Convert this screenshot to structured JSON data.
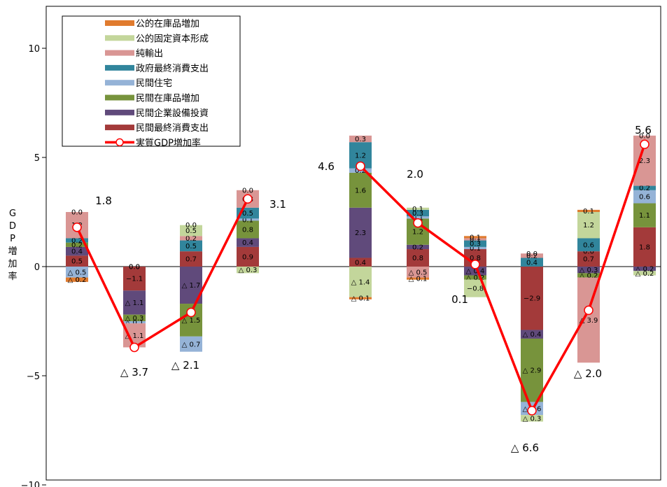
{
  "chart_data": {
    "type": "bar",
    "subtype": "stacked-bar-with-line",
    "title": "",
    "ylabel": "GDP増加率",
    "ylim": [
      -10,
      12
    ],
    "yticks": [
      {
        "value": 10,
        "label": "10"
      },
      {
        "value": 5,
        "label": "5"
      },
      {
        "value": 0,
        "label": "0"
      },
      {
        "value": -5,
        "label": "−5"
      },
      {
        "value": -10,
        "label": "−10"
      }
    ],
    "grid": false,
    "legend_position": "top-left",
    "legend": [
      {
        "name": "公的在庫品増加",
        "color": "#e07b2e"
      },
      {
        "name": "公的固定資本形成",
        "color": "#c3d69b"
      },
      {
        "name": "純輸出",
        "color": "#d99694"
      },
      {
        "name": "政府最終消費支出",
        "color": "#31859c"
      },
      {
        "name": "民間住宅",
        "color": "#95b3d7"
      },
      {
        "name": "民間在庫品増加",
        "color": "#77933c"
      },
      {
        "name": "民間企業設備投資",
        "color": "#604a7b"
      },
      {
        "name": "民間最終消費支出",
        "color": "#a33a3a"
      },
      {
        "name": "実質GDP増加率",
        "color": "#ff0000",
        "kind": "line"
      }
    ],
    "series_order": [
      "民間最終消費支出",
      "民間企業設備投資",
      "民間在庫品増加",
      "民間住宅",
      "政府最終消費支出",
      "純輸出",
      "公的固定資本形成",
      "公的在庫品増加"
    ],
    "groups": [
      {
        "bars": [
          {
            "gdp": 1.8,
            "gdp_label": "1.8",
            "segments": [
              {
                "series": "民間最終消費支出",
                "value": 0.5,
                "label": "0.5"
              },
              {
                "series": "民間企業設備投資",
                "value": 0.4,
                "label": "0.4"
              },
              {
                "series": "民間在庫品増加",
                "value": 0.2,
                "label": "0.2"
              },
              {
                "series": "政府最終消費支出",
                "value": 0.2,
                "label": "0.2"
              },
              {
                "series": "純輸出",
                "value": 1.2,
                "label": "1.2"
              },
              {
                "series": "公的固定資本形成",
                "value": 0.0,
                "label": "0.0"
              },
              {
                "series": "民間住宅",
                "value": -0.5,
                "label": "△ 0.5"
              },
              {
                "series": "公的在庫品増加",
                "value": -0.2,
                "label": "△ 0.2"
              }
            ]
          },
          {
            "gdp": -3.7,
            "gdp_label": "△ 3.7",
            "segments": [
              {
                "series": "公的在庫品増加",
                "value": 0.0,
                "label": "0.0"
              },
              {
                "series": "公的固定資本形成",
                "value": 0.0,
                "label": "0.0"
              },
              {
                "series": "民間最終消費支出",
                "value": -1.1,
                "label": "−1.1"
              },
              {
                "series": "民間企業設備投資",
                "value": -1.1,
                "label": "△ 1.1"
              },
              {
                "series": "民間住宅",
                "value": -0.1,
                "label": "△ 0.1"
              },
              {
                "series": "純輸出",
                "value": -1.1,
                "label": "△ 1.1"
              },
              {
                "series": "民間在庫品増加",
                "value": -0.3,
                "label": "△ 0.3"
              }
            ]
          },
          {
            "gdp": -2.1,
            "gdp_label": "△ 2.1",
            "segments": [
              {
                "series": "民間最終消費支出",
                "value": 0.7,
                "label": "0.7"
              },
              {
                "series": "政府最終消費支出",
                "value": 0.5,
                "label": "0.5"
              },
              {
                "series": "純輸出",
                "value": 0.2,
                "label": "0.2"
              },
              {
                "series": "公的固定資本形成",
                "value": 0.5,
                "label": "0.5"
              },
              {
                "series": "公的在庫品増加",
                "value": 0.0,
                "label": "0.0"
              },
              {
                "series": "民間企業設備投資",
                "value": -1.7,
                "label": "△ 1.7"
              },
              {
                "series": "民間在庫品増加",
                "value": -1.5,
                "label": "△ 1.5"
              },
              {
                "series": "民間住宅",
                "value": -0.7,
                "label": "△ 0.7"
              }
            ]
          },
          {
            "gdp": 3.1,
            "gdp_label": "3.1",
            "segments": [
              {
                "series": "民間最終消費支出",
                "value": 0.9,
                "label": "0.9"
              },
              {
                "series": "民間企業設備投資",
                "value": 0.4,
                "label": "0.4"
              },
              {
                "series": "民間在庫品増加",
                "value": 0.8,
                "label": "0.8"
              },
              {
                "series": "民間住宅",
                "value": 0.1,
                "label": "0.1"
              },
              {
                "series": "政府最終消費支出",
                "value": 0.5,
                "label": "0.5"
              },
              {
                "series": "純輸出",
                "value": 0.8,
                "label": "0.8"
              },
              {
                "series": "公的在庫品増加",
                "value": 0.0,
                "label": "0.0"
              },
              {
                "series": "公的固定資本形成",
                "value": -0.3,
                "label": "△ 0.3"
              }
            ]
          }
        ]
      },
      {
        "bars": [
          {
            "gdp": 4.6,
            "gdp_label": "4.6",
            "segments": [
              {
                "series": "民間最終消費支出",
                "value": 0.4,
                "label": "0.4"
              },
              {
                "series": "民間企業設備投資",
                "value": 2.3,
                "label": "2.3"
              },
              {
                "series": "民間在庫品増加",
                "value": 1.6,
                "label": "1.6"
              },
              {
                "series": "民間住宅",
                "value": 0.2,
                "label": "0.2"
              },
              {
                "series": "政府最終消費支出",
                "value": 1.2,
                "label": "1.2"
              },
              {
                "series": "純輸出",
                "value": 0.3,
                "label": "0.3"
              },
              {
                "series": "公的固定資本形成",
                "value": -1.4,
                "label": "△ 1.4"
              },
              {
                "series": "公的在庫品増加",
                "value": -0.1,
                "label": "△ 0.1"
              }
            ]
          },
          {
            "gdp": 2.0,
            "gdp_label": "2.0",
            "segments": [
              {
                "series": "民間最終消費支出",
                "value": 0.8,
                "label": "0.8"
              },
              {
                "series": "民間企業設備投資",
                "value": 0.2,
                "label": "0.2"
              },
              {
                "series": "民間在庫品増加",
                "value": 1.2,
                "label": "1.2"
              },
              {
                "series": "民間住宅",
                "value": 0.1,
                "label": "0.1"
              },
              {
                "series": "政府最終消費支出",
                "value": 0.3,
                "label": "0.3"
              },
              {
                "series": "公的固定資本形成",
                "value": 0.1,
                "label": "0.1"
              },
              {
                "series": "純輸出",
                "value": -0.5,
                "label": "△ 0.5"
              },
              {
                "series": "公的在庫品増加",
                "value": -0.1,
                "label": "△ 0.1"
              }
            ]
          },
          {
            "gdp": 0.1,
            "gdp_label": "0.1",
            "segments": [
              {
                "series": "民間最終消費支出",
                "value": 0.8,
                "label": "0.8"
              },
              {
                "series": "民間住宅",
                "value": 0.1,
                "label": "0.1"
              },
              {
                "series": "政府最終消費支出",
                "value": 0.3,
                "label": "0.3"
              },
              {
                "series": "純輸出",
                "value": 0.1,
                "label": "0.1"
              },
              {
                "series": "公的在庫品増加",
                "value": 0.1,
                "label": "0.1"
              },
              {
                "series": "民間企業設備投資",
                "value": -0.4,
                "label": "△ 0.4"
              },
              {
                "series": "民間在庫品増加",
                "value": -0.2,
                "label": "△ 0.2"
              },
              {
                "series": "公的固定資本形成",
                "value": -0.8,
                "label": "−0.8"
              }
            ]
          },
          {
            "gdp": -6.6,
            "gdp_label": "△ 6.6",
            "segments": [
              {
                "series": "政府最終消費支出",
                "value": 0.4,
                "label": "0.4"
              },
              {
                "series": "公的在庫品増加",
                "value": 0.0,
                "label": "0.0"
              },
              {
                "series": "純輸出",
                "value": 0.2,
                "label": "0.2"
              },
              {
                "series": "民間最終消費支出",
                "value": -2.9,
                "label": "−2.9"
              },
              {
                "series": "民間企業設備投資",
                "value": -0.4,
                "label": "△ 0.4"
              },
              {
                "series": "民間在庫品増加",
                "value": -2.9,
                "label": "△ 2.9"
              },
              {
                "series": "民間住宅",
                "value": -0.6,
                "label": "△ 0.6"
              },
              {
                "series": "公的固定資本形成",
                "value": -0.3,
                "label": "△ 0.3"
              }
            ]
          },
          {
            "gdp": -2.0,
            "gdp_label": "△ 2.0",
            "segments": [
              {
                "series": "民間最終消費支出",
                "value": 0.7,
                "label": "0.7"
              },
              {
                "series": "政府最終消費支出",
                "value": 0.6,
                "label": "0.6"
              },
              {
                "series": "公的固定資本形成",
                "value": 1.2,
                "label": "1.2"
              },
              {
                "series": "公的在庫品増加",
                "value": 0.1,
                "label": "0.1"
              },
              {
                "series": "民間住宅",
                "value": 0.0,
                "label": "0.0"
              },
              {
                "series": "民間企業設備投資",
                "value": -0.3,
                "label": "△ 0.3"
              },
              {
                "series": "民間在庫品増加",
                "value": -0.2,
                "label": "△ 0.2"
              },
              {
                "series": "純輸出",
                "value": -3.9,
                "label": "△ 3.9"
              }
            ]
          },
          {
            "gdp": 5.6,
            "gdp_label": "5.6",
            "segments": [
              {
                "series": "民間最終消費支出",
                "value": 1.8,
                "label": "1.8"
              },
              {
                "series": "民間在庫品増加",
                "value": 1.1,
                "label": "1.1"
              },
              {
                "series": "民間住宅",
                "value": 0.6,
                "label": "0.6"
              },
              {
                "series": "政府最終消費支出",
                "value": 0.2,
                "label": "0.2"
              },
              {
                "series": "純輸出",
                "value": 2.3,
                "label": "2.3"
              },
              {
                "series": "公的在庫品増加",
                "value": 0.0,
                "label": "0.0"
              },
              {
                "series": "民間企業設備投資",
                "value": -0.2,
                "label": "△ 0.2"
              },
              {
                "series": "公的固定資本形成",
                "value": -0.2,
                "label": "△ 0.2"
              }
            ]
          }
        ]
      }
    ]
  }
}
